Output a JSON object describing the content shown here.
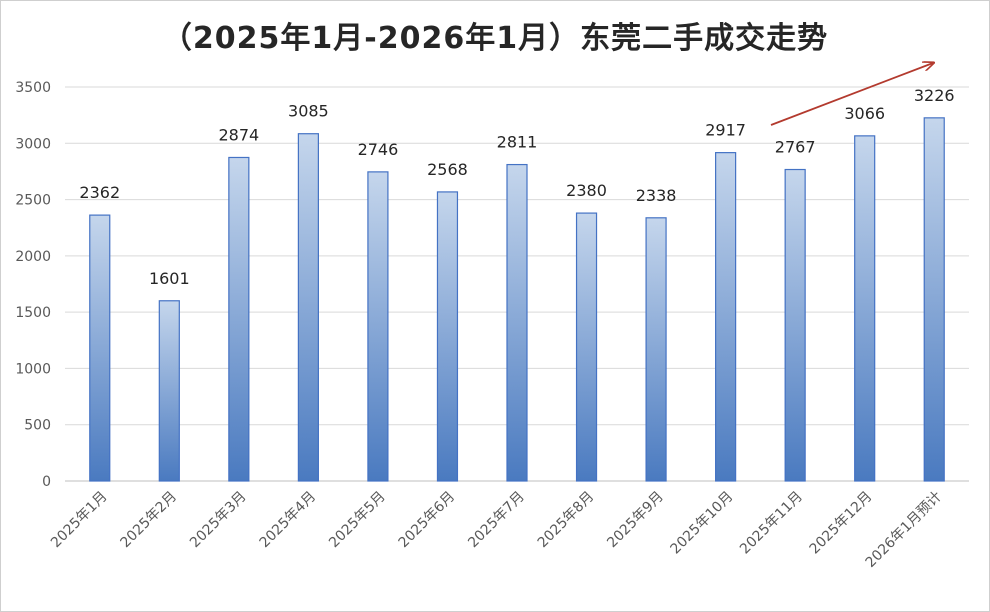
{
  "chart_data": {
    "type": "bar",
    "title": "（2025年1月-2026年1月）东莞二手成交走势",
    "categories": [
      "2025年1月",
      "2025年2月",
      "2025年3月",
      "2025年4月",
      "2025年5月",
      "2025年6月",
      "2025年7月",
      "2025年8月",
      "2025年9月",
      "2025年10月",
      "2025年11月",
      "2025年12月",
      "2026年1月预计"
    ],
    "values": [
      2362,
      1601,
      2874,
      3085,
      2746,
      2568,
      2811,
      2380,
      2338,
      2917,
      2767,
      3066,
      3226
    ],
    "data_labels": [
      "2362",
      "1601",
      "2874",
      "3085",
      "2746",
      "2568",
      "2811",
      "2380",
      "2338",
      "2917",
      "2767",
      "3066",
      "3226"
    ],
    "y_ticks": [
      "0",
      "500",
      "1000",
      "1500",
      "2000",
      "2500",
      "3000",
      "3500"
    ],
    "ylim": [
      0,
      3500
    ],
    "grid": true,
    "legend": "none",
    "bar_color_top": "#c5d6ec",
    "bar_color_bottom": "#4a7ac0",
    "bar_border": "#4472c4",
    "trend_arrow_color": "#b33a2e",
    "annotation": "trend-arrow-up"
  }
}
